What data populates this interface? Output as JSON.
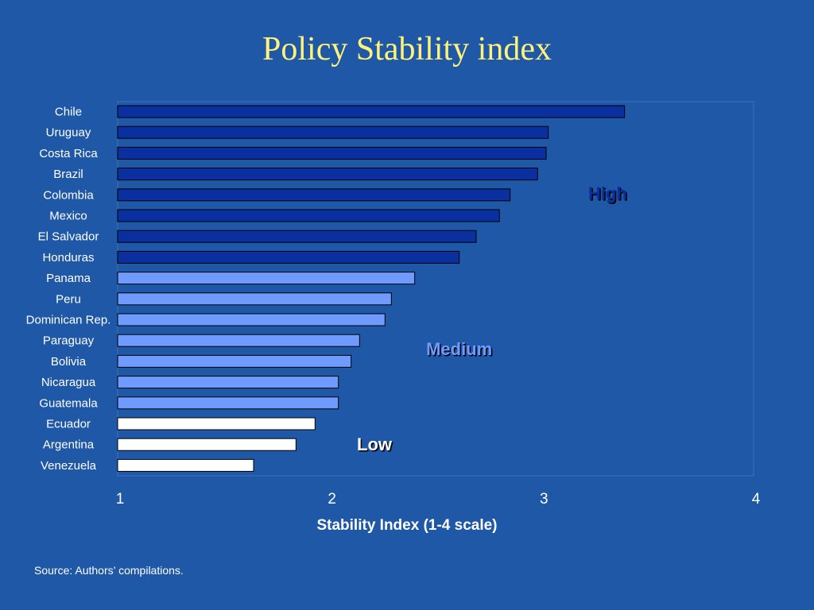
{
  "title": "Policy Stability index",
  "source": "Source: Authors’ compilations.",
  "colors": {
    "background": "#1f58a6",
    "high": "#0a2f9e",
    "medium": "#6f9bff",
    "low": "#ffffff",
    "title": "#fff27a"
  },
  "chart_data": {
    "type": "bar",
    "orientation": "horizontal",
    "xlabel": "Stability Index (1-4 scale)",
    "xlim": [
      1,
      4
    ],
    "xticks": [
      "1",
      "2",
      "3",
      "4"
    ],
    "grid": false,
    "categories": [
      "Chile",
      "Uruguay",
      "Costa Rica",
      "Brazil",
      "Colombia",
      "Mexico",
      "El Salvador",
      "Honduras",
      "Panama",
      "Peru",
      "Dominican Rep.",
      "Paraguay",
      "Bolivia",
      "Nicaragua",
      "Guatemala",
      "Ecuador",
      "Argentina",
      "Venezuela"
    ],
    "values": [
      3.38,
      3.02,
      3.01,
      2.97,
      2.84,
      2.79,
      2.68,
      2.6,
      2.39,
      2.28,
      2.25,
      2.13,
      2.09,
      2.03,
      2.03,
      1.92,
      1.83,
      1.63
    ],
    "groups": [
      "high",
      "high",
      "high",
      "high",
      "high",
      "high",
      "high",
      "high",
      "medium",
      "medium",
      "medium",
      "medium",
      "medium",
      "medium",
      "medium",
      "low",
      "low",
      "low"
    ],
    "annotations": [
      {
        "text": "High",
        "group": "high",
        "x": 3.3
      },
      {
        "text": "Medium",
        "group": "medium",
        "x": 2.6
      },
      {
        "text": "Low",
        "group": "low",
        "x": 2.2
      }
    ]
  }
}
